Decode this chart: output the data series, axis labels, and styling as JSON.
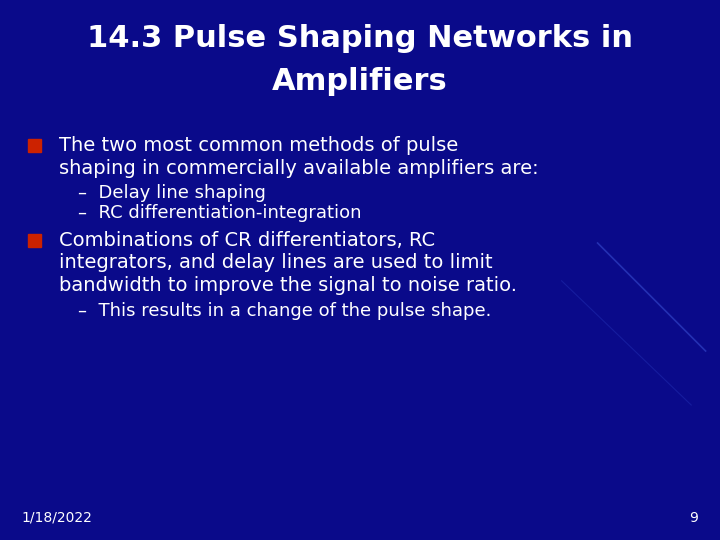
{
  "title_line1": "14.3 Pulse Shaping Networks in",
  "title_line2": "Amplifiers",
  "background_color": "#0a0a8a",
  "title_color": "#FFFFFF",
  "text_color": "#FFFFFF",
  "bullet_color": "#CC2200",
  "footer_date": "1/18/2022",
  "footer_page": "9",
  "bullet1_line1": "The two most common methods of pulse",
  "bullet1_line2": "shaping in commercially available amplifiers are:",
  "sub1": "–  Delay line shaping",
  "sub2": "–  RC differentiation-integration",
  "bullet2_line1": "Combinations of CR differentiators, RC",
  "bullet2_line2": "integrators, and delay lines are used to limit",
  "bullet2_line3": "bandwidth to improve the signal to noise ratio.",
  "sub3": "–  This results in a change of the pulse shape.",
  "title_fontsize": 22,
  "body_fontsize": 14,
  "sub_fontsize": 13,
  "footer_fontsize": 10
}
